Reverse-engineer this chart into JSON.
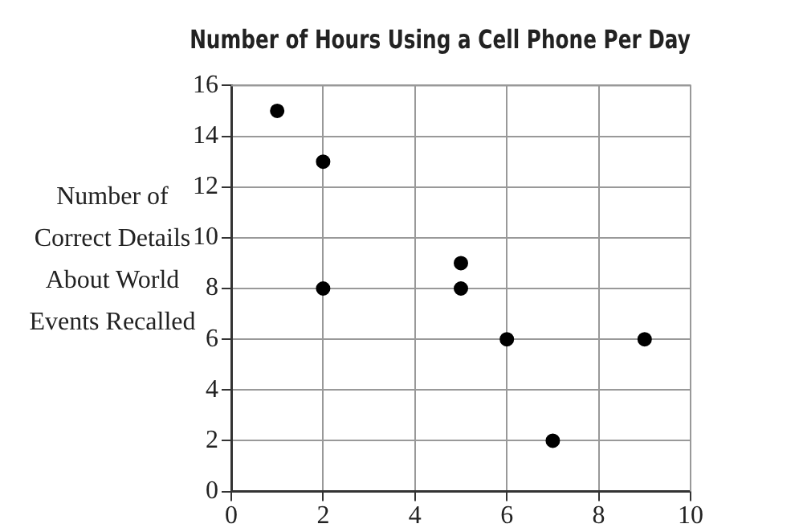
{
  "chart_data": {
    "type": "scatter",
    "title": "Number of Hours Using a Cell Phone Per Day",
    "ylabel": "Number of Correct Details About World Events Recalled",
    "x": [
      1,
      2,
      2,
      5,
      5,
      6,
      7,
      9
    ],
    "series": [
      {
        "color": "#000000",
        "values": [
          15,
          13,
          8,
          9,
          8,
          6,
          2,
          6
        ]
      }
    ],
    "xlim": [
      0,
      10
    ],
    "xticks": [
      0,
      2,
      4,
      6,
      8,
      10
    ],
    "ylim": [
      0,
      16
    ],
    "yticks": [
      0,
      2,
      4,
      6,
      8,
      10,
      12,
      14,
      16
    ],
    "grid": true,
    "legend": false,
    "marker": "circle"
  }
}
